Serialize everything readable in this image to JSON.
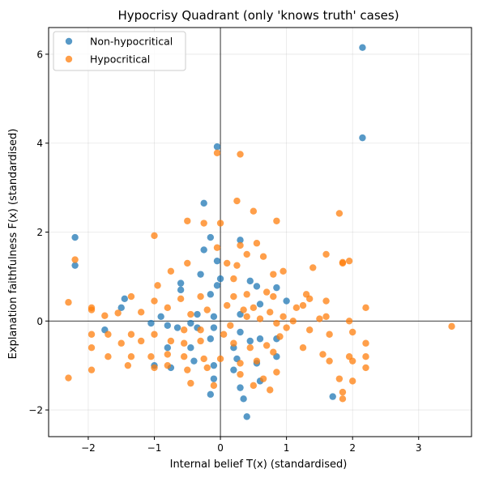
{
  "chart_data": {
    "type": "scatter",
    "title": "Hypocrisy Quadrant (only 'knows truth' cases)",
    "xlabel": "Internal belief T(x) (standardised)",
    "ylabel": "Explanation faithfulness F(x) (standardised)",
    "xlim": [
      -2.6,
      3.8
    ],
    "ylim": [
      -2.6,
      6.6
    ],
    "xticks": [
      -2,
      -1,
      0,
      1,
      2,
      3
    ],
    "yticks": [
      -2,
      0,
      2,
      4,
      6
    ],
    "xtick_labels": [
      "−2",
      "−1",
      "0",
      "1",
      "2",
      "3"
    ],
    "ytick_labels": [
      "−2",
      "0",
      "2",
      "4",
      "6"
    ],
    "grid": true,
    "reference_lines": {
      "x": 0,
      "y": 0
    },
    "legend_position": "top-left",
    "series": [
      {
        "name": "Non-hypocritical",
        "color": "#1f77b4",
        "points": [
          [
            2.15,
            6.15
          ],
          [
            2.15,
            4.12
          ],
          [
            -0.05,
            3.92
          ],
          [
            -2.2,
            1.88
          ],
          [
            -2.2,
            1.25
          ],
          [
            -0.25,
            2.65
          ],
          [
            -0.15,
            1.88
          ],
          [
            0.3,
            1.82
          ],
          [
            -0.25,
            1.6
          ],
          [
            -0.05,
            1.35
          ],
          [
            0.0,
            0.95
          ],
          [
            -0.05,
            0.8
          ],
          [
            -0.3,
            1.05
          ],
          [
            -0.6,
            0.85
          ],
          [
            -0.6,
            0.7
          ],
          [
            -0.15,
            0.6
          ],
          [
            0.45,
            0.9
          ],
          [
            0.55,
            0.78
          ],
          [
            0.85,
            0.75
          ],
          [
            1.0,
            0.45
          ],
          [
            0.6,
            0.38
          ],
          [
            0.3,
            0.15
          ],
          [
            -0.35,
            0.15
          ],
          [
            -0.1,
            0.1
          ],
          [
            -0.9,
            0.1
          ],
          [
            -1.45,
            0.5
          ],
          [
            -1.5,
            0.3
          ],
          [
            -1.75,
            -0.2
          ],
          [
            -1.05,
            -0.05
          ],
          [
            -0.8,
            -0.1
          ],
          [
            -0.65,
            -0.15
          ],
          [
            -0.45,
            -0.05
          ],
          [
            -0.35,
            -0.15
          ],
          [
            -0.1,
            -0.15
          ],
          [
            0.3,
            -0.25
          ],
          [
            0.45,
            -0.45
          ],
          [
            0.6,
            -0.4
          ],
          [
            0.85,
            -0.4
          ],
          [
            0.85,
            -0.8
          ],
          [
            0.2,
            -0.6
          ],
          [
            -0.15,
            -0.4
          ],
          [
            -0.45,
            -0.6
          ],
          [
            -0.8,
            -0.6
          ],
          [
            -0.75,
            -1.05
          ],
          [
            -0.4,
            -0.9
          ],
          [
            -0.1,
            -1.0
          ],
          [
            0.2,
            -1.1
          ],
          [
            0.3,
            -1.5
          ],
          [
            -0.1,
            -1.3
          ],
          [
            -0.15,
            -1.65
          ],
          [
            0.35,
            -1.75
          ],
          [
            0.4,
            -2.15
          ],
          [
            0.6,
            -1.35
          ],
          [
            1.7,
            -1.7
          ],
          [
            -1.0,
            -1.0
          ],
          [
            0.25,
            -0.85
          ],
          [
            0.55,
            -0.95
          ]
        ]
      },
      {
        "name": "Hypocritical",
        "color": "#ff7f0e",
        "points": [
          [
            -0.05,
            3.78
          ],
          [
            0.3,
            3.75
          ],
          [
            0.25,
            2.7
          ],
          [
            0.5,
            2.47
          ],
          [
            0.85,
            2.25
          ],
          [
            1.8,
            2.42
          ],
          [
            0.0,
            2.2
          ],
          [
            -0.5,
            2.25
          ],
          [
            -0.25,
            2.2
          ],
          [
            -1.0,
            1.92
          ],
          [
            0.3,
            1.7
          ],
          [
            0.55,
            1.75
          ],
          [
            0.4,
            1.5
          ],
          [
            0.65,
            1.45
          ],
          [
            -0.05,
            1.65
          ],
          [
            -2.2,
            1.38
          ],
          [
            1.4,
            1.2
          ],
          [
            1.85,
            1.3
          ],
          [
            1.85,
            1.32
          ],
          [
            1.6,
            1.5
          ],
          [
            1.95,
            1.35
          ],
          [
            0.95,
            1.12
          ],
          [
            0.8,
            1.05
          ],
          [
            0.25,
            1.25
          ],
          [
            0.1,
            1.3
          ],
          [
            0.2,
            0.95
          ],
          [
            -0.5,
            1.3
          ],
          [
            -0.75,
            1.12
          ],
          [
            -0.95,
            0.8
          ],
          [
            -1.35,
            0.55
          ],
          [
            -1.0,
            0.45
          ],
          [
            -0.6,
            0.5
          ],
          [
            -0.3,
            0.55
          ],
          [
            0.2,
            0.55
          ],
          [
            0.4,
            0.6
          ],
          [
            0.7,
            0.65
          ],
          [
            0.8,
            0.55
          ],
          [
            1.3,
            0.6
          ],
          [
            1.35,
            0.5
          ],
          [
            1.15,
            0.3
          ],
          [
            1.25,
            0.35
          ],
          [
            1.6,
            0.45
          ],
          [
            1.95,
            0.0
          ],
          [
            2.2,
            0.3
          ],
          [
            1.6,
            0.1
          ],
          [
            -2.3,
            0.42
          ],
          [
            -1.95,
            0.3
          ],
          [
            -1.95,
            0.25
          ],
          [
            -1.75,
            0.12
          ],
          [
            -1.55,
            0.18
          ],
          [
            -1.2,
            0.2
          ],
          [
            -0.8,
            0.3
          ],
          [
            -0.45,
            0.15
          ],
          [
            -0.2,
            0.25
          ],
          [
            0.1,
            0.35
          ],
          [
            0.35,
            0.25
          ],
          [
            0.5,
            0.3
          ],
          [
            0.75,
            0.2
          ],
          [
            0.95,
            0.1
          ],
          [
            1.5,
            0.05
          ],
          [
            1.0,
            -0.15
          ],
          [
            1.35,
            -0.2
          ],
          [
            1.65,
            -0.3
          ],
          [
            2.0,
            -0.25
          ],
          [
            2.2,
            -0.5
          ],
          [
            3.5,
            -0.12
          ],
          [
            -1.95,
            -0.3
          ],
          [
            -1.7,
            -0.3
          ],
          [
            -1.5,
            -0.5
          ],
          [
            -1.35,
            -0.3
          ],
          [
            -1.2,
            -0.45
          ],
          [
            -1.0,
            -0.3
          ],
          [
            -0.75,
            -0.45
          ],
          [
            -0.55,
            -0.5
          ],
          [
            -0.3,
            -0.45
          ],
          [
            0.05,
            -0.3
          ],
          [
            0.2,
            -0.5
          ],
          [
            0.45,
            -0.6
          ],
          [
            0.7,
            -0.55
          ],
          [
            0.9,
            -0.35
          ],
          [
            1.25,
            -0.6
          ],
          [
            1.55,
            -0.75
          ],
          [
            1.95,
            -0.8
          ],
          [
            2.2,
            -0.8
          ],
          [
            -1.95,
            -0.6
          ],
          [
            -1.7,
            -0.8
          ],
          [
            -1.35,
            -0.8
          ],
          [
            -1.05,
            -0.8
          ],
          [
            -0.8,
            -0.75
          ],
          [
            -0.55,
            -0.8
          ],
          [
            -0.25,
            -0.85
          ],
          [
            0.0,
            -0.85
          ],
          [
            0.3,
            -0.95
          ],
          [
            0.55,
            -0.9
          ],
          [
            0.8,
            -0.7
          ],
          [
            1.65,
            -0.9
          ],
          [
            2.0,
            -0.9
          ],
          [
            2.2,
            -1.05
          ],
          [
            -1.95,
            -1.1
          ],
          [
            -1.4,
            -1.0
          ],
          [
            -1.0,
            -1.05
          ],
          [
            -0.8,
            -1.0
          ],
          [
            -0.5,
            -1.1
          ],
          [
            -0.2,
            -1.05
          ],
          [
            0.3,
            -1.2
          ],
          [
            0.65,
            -1.3
          ],
          [
            0.85,
            -1.15
          ],
          [
            1.8,
            -1.3
          ],
          [
            2.0,
            -1.35
          ],
          [
            -2.3,
            -1.28
          ],
          [
            -0.45,
            -1.4
          ],
          [
            -0.1,
            -1.45
          ],
          [
            0.5,
            -1.45
          ],
          [
            0.75,
            -1.55
          ],
          [
            1.85,
            -1.6
          ],
          [
            1.85,
            -1.75
          ],
          [
            -0.55,
            -0.2
          ],
          [
            0.15,
            -0.1
          ],
          [
            0.6,
            0.05
          ],
          [
            0.85,
            -0.05
          ],
          [
            -0.3,
            -0.2
          ],
          [
            0.4,
            0.1
          ],
          [
            1.1,
            0.0
          ]
        ]
      }
    ]
  }
}
